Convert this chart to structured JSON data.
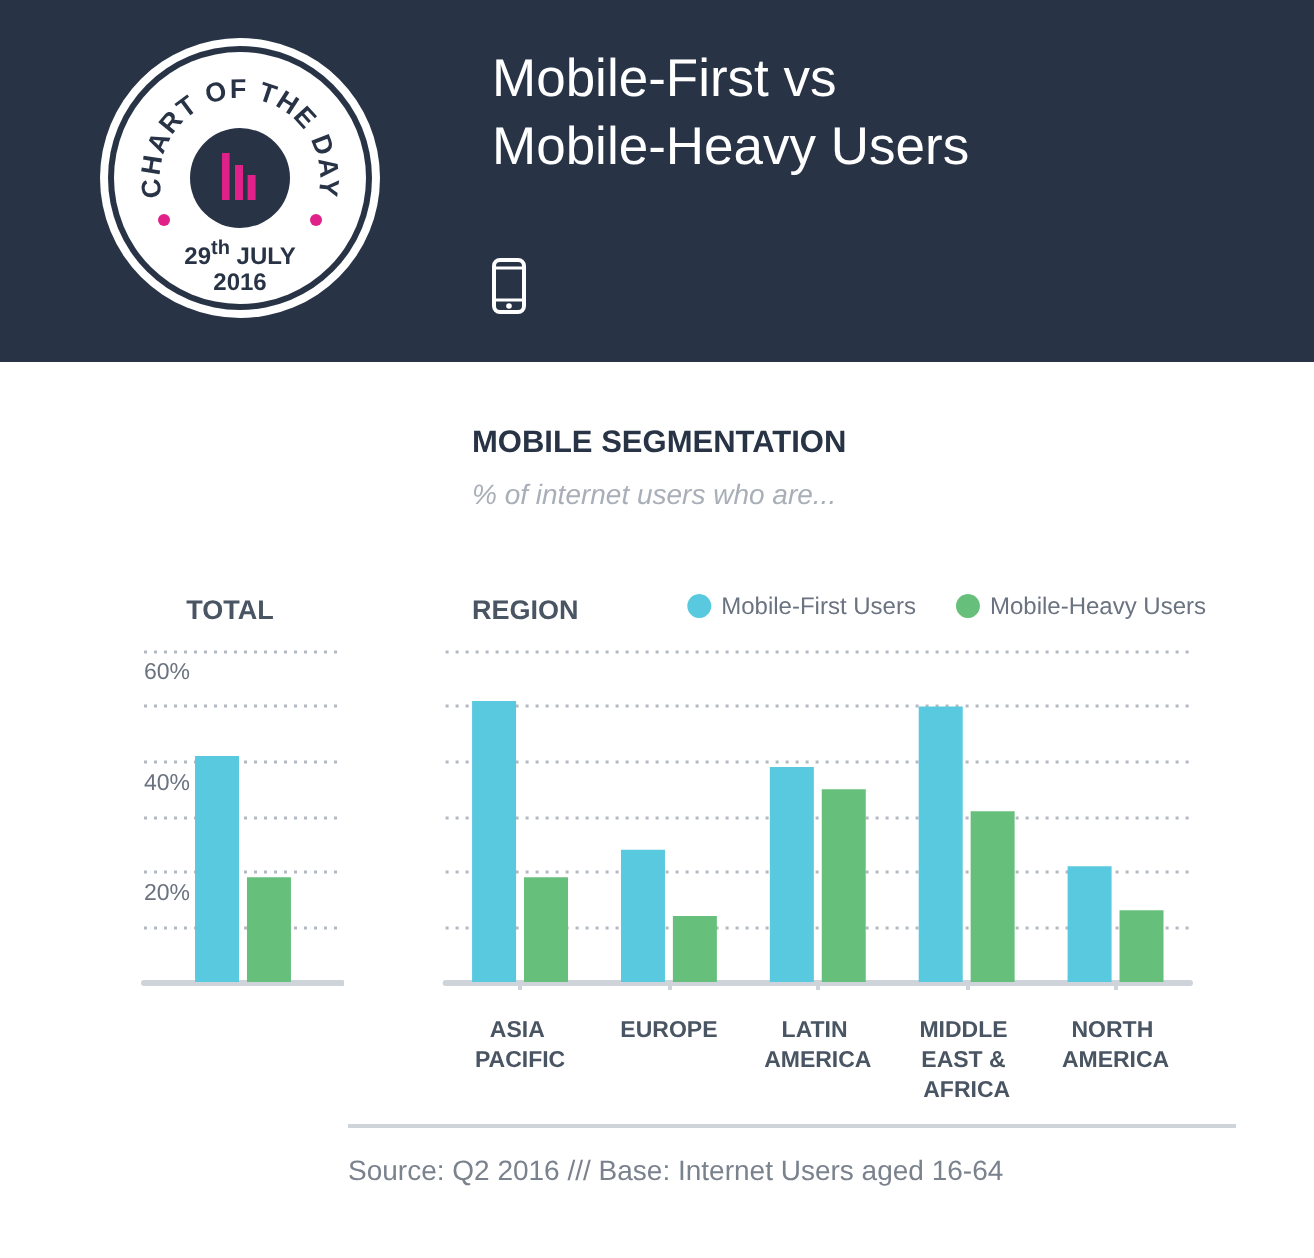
{
  "chart_data": [
    {
      "type": "other",
      "title": "Mobile-First vs Mobile-Heavy Users",
      "subtitle": "MOBILE SEGMENTATION",
      "annotations": [
        "CHART OF THE DAY",
        "29$^{th}$ JULY 2016",
        "% of internet users who are..."
      ]
    },
    {
      "type": "bar",
      "title": "TOTAL",
      "categories": [
        null
      ],
      "series": [
        {
          "color": "#58c9df",
          "values": [
            41
          ]
        },
        {
          "color": "#66c07b",
          "values": [
            19
          ]
        }
      ],
      "ylim": [
        0,
        60
      ],
      "yticks": [
        {
          "value": 10,
          "label": null
        },
        {
          "value": 20,
          "label": "20%"
        },
        {
          "value": 30,
          "label": null
        },
        {
          "value": 40,
          "label": "40%"
        },
        {
          "value": 50,
          "label": null
        },
        {
          "value": 60,
          "label": "60%"
        }
      ],
      "grid": "y",
      "tick_labels": "y"
    },
    {
      "type": "bar",
      "title": "REGION",
      "categories": [
        "ASIA PACIFIC",
        "EUROPE",
        "LATIN AMERICA",
        "MIDDLE EAST & AFRICA",
        "NORTH AMERICA"
      ],
      "series": [
        {
          "name": "Mobile-First Users",
          "color": "#58c9df",
          "values": [
            51,
            24,
            39,
            50,
            21
          ]
        },
        {
          "name": "Mobile-Heavy Users",
          "color": "#66c07b",
          "values": [
            19,
            12,
            35,
            31,
            13
          ]
        }
      ],
      "ylim": [
        0,
        60
      ],
      "yticks": [
        10,
        20,
        30,
        40,
        50,
        60
      ],
      "grid": "y",
      "tick_labels": "x",
      "legend": "top right",
      "annotations": [
        "Source: Q2 2016 /// Base: Internet Users aged 16-64"
      ]
    }
  ]
}
